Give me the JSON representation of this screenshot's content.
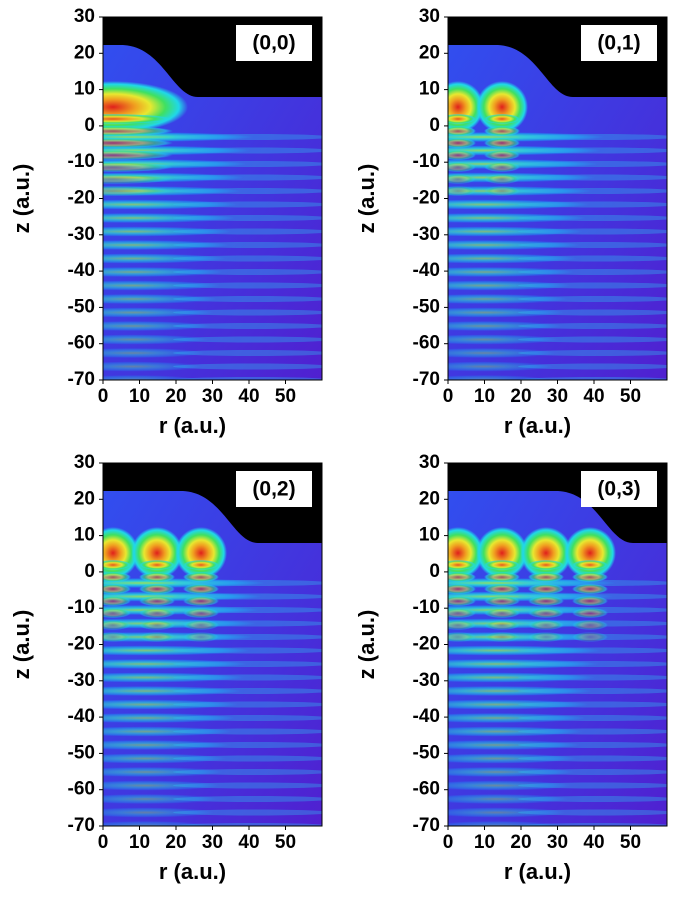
{
  "chart_data": [
    {
      "type": "contour",
      "annotation": "(0,0)",
      "xlabel": "r (a.u.)",
      "ylabel": "z (a.u.)",
      "xlim": [
        0,
        60
      ],
      "ylim": [
        -70,
        30
      ],
      "xticks": [
        0,
        10,
        20,
        30,
        40,
        50
      ],
      "yticks": [
        -70,
        -60,
        -50,
        -40,
        -30,
        -20,
        -10,
        0,
        10,
        20,
        30
      ]
    },
    {
      "type": "contour",
      "annotation": "(0,1)",
      "xlabel": "r (a.u.)",
      "ylabel": "z (a.u.)",
      "xlim": [
        0,
        60
      ],
      "ylim": [
        -70,
        30
      ],
      "xticks": [
        0,
        10,
        20,
        30,
        40,
        50
      ],
      "yticks": [
        -70,
        -60,
        -50,
        -40,
        -30,
        -20,
        -10,
        0,
        10,
        20,
        30
      ]
    },
    {
      "type": "contour",
      "annotation": "(0,2)",
      "xlabel": "r (a.u.)",
      "ylabel": "z (a.u.)",
      "xlim": [
        0,
        60
      ],
      "ylim": [
        -70,
        30
      ],
      "xticks": [
        0,
        10,
        20,
        30,
        40,
        50
      ],
      "yticks": [
        -70,
        -60,
        -50,
        -40,
        -30,
        -20,
        -10,
        0,
        10,
        20,
        30
      ]
    },
    {
      "type": "contour",
      "annotation": "(0,3)",
      "xlabel": "r (a.u.)",
      "ylabel": "z (a.u.)",
      "xlim": [
        0,
        60
      ],
      "ylim": [
        -70,
        30
      ],
      "xticks": [
        0,
        10,
        20,
        30,
        40,
        50
      ],
      "yticks": [
        -70,
        -60,
        -50,
        -40,
        -30,
        -20,
        -10,
        0,
        10,
        20,
        30
      ]
    }
  ]
}
